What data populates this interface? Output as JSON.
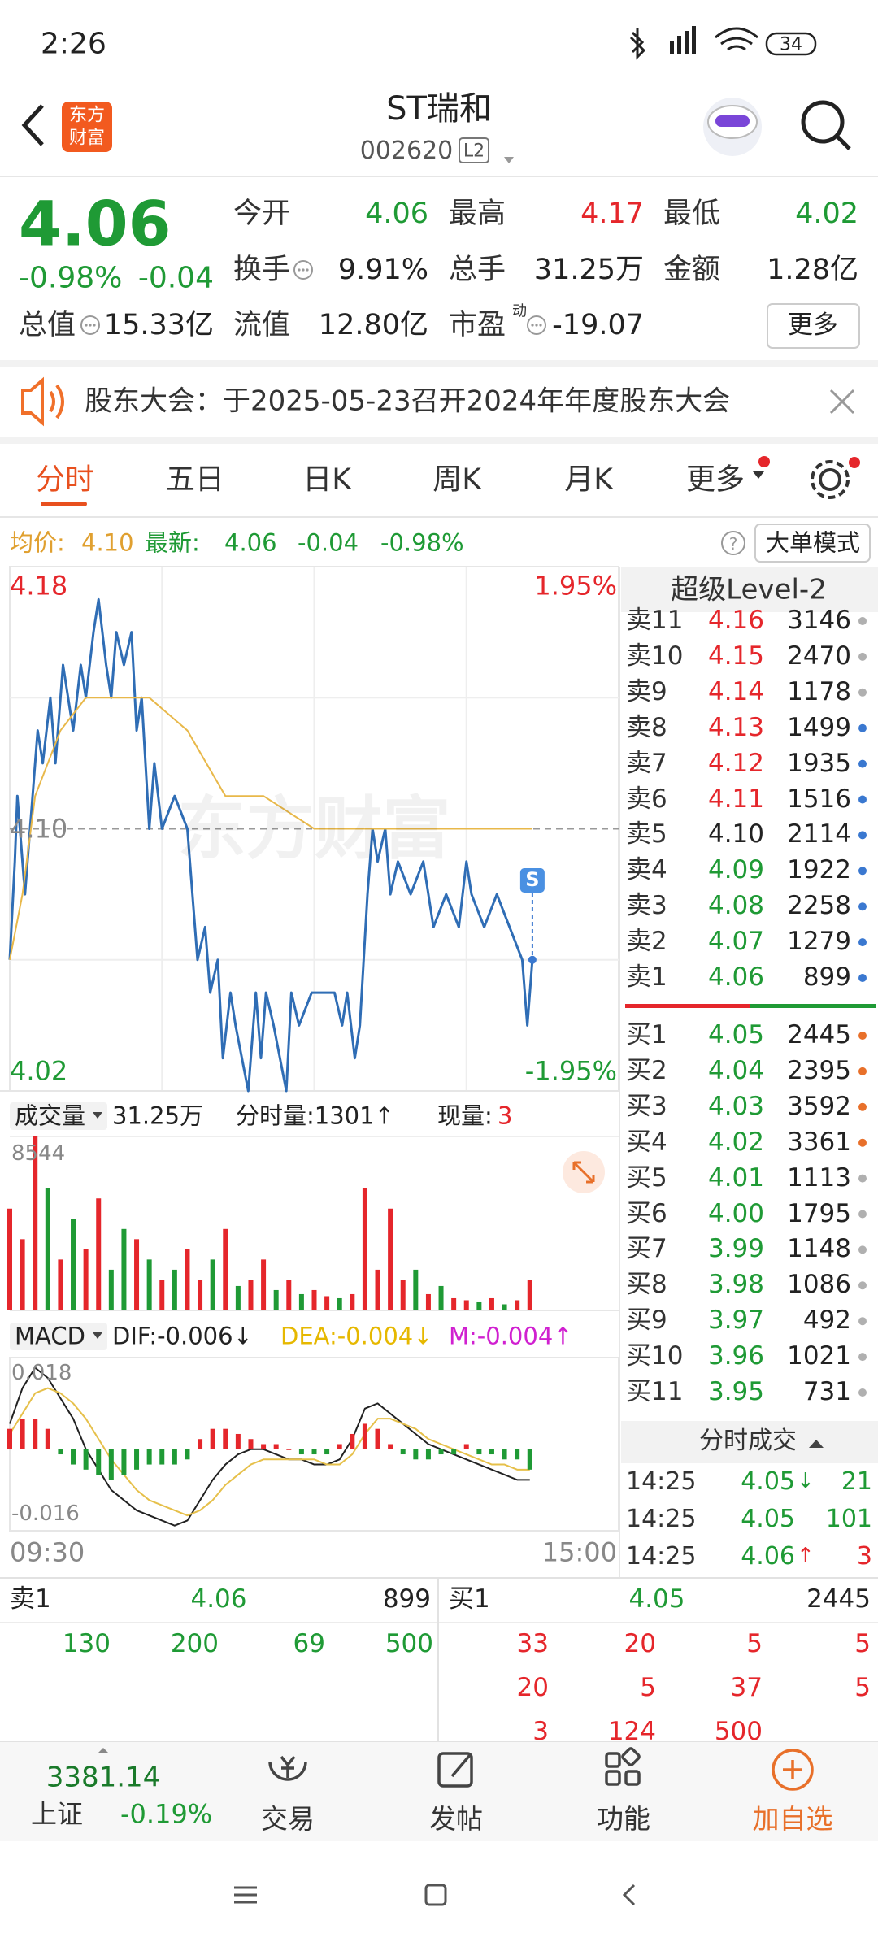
{
  "status": {
    "time": "2:26",
    "battery": "34"
  },
  "header": {
    "logo": [
      "东方",
      "财富"
    ],
    "title": "ST瑞和",
    "code": "002620",
    "level": "L2"
  },
  "quote": {
    "price": "4.06",
    "change_pct": "-0.98%",
    "change": "-0.04",
    "rows": [
      [
        {
          "label": "今开",
          "value": "4.06",
          "color": "#1f9a35"
        },
        {
          "label": "最高",
          "value": "4.17",
          "color": "#e5262b"
        },
        {
          "label": "最低",
          "value": "4.02",
          "color": "#1f9a35"
        }
      ],
      [
        {
          "label": "换手",
          "value": "9.91%",
          "color": "#222222",
          "info": true
        },
        {
          "label": "总手",
          "value": "31.25万",
          "color": "#222222"
        },
        {
          "label": "金额",
          "value": "1.28亿",
          "color": "#222222"
        }
      ]
    ],
    "stats": [
      {
        "label": "总值",
        "value": "15.33亿",
        "info": true
      },
      {
        "label": "流值",
        "value": "12.80亿"
      },
      {
        "label": "市盈",
        "sup": "动",
        "value": "-19.07",
        "info": true
      }
    ],
    "more": "更多"
  },
  "notice": {
    "text": "股东大会：于2025-05-23召开2024年年度股东大会"
  },
  "tabs": {
    "items": [
      "分时",
      "五日",
      "日K",
      "周K",
      "月K",
      "更多"
    ],
    "active": 0
  },
  "info": {
    "avg_label": "均价:",
    "avg": "4.10",
    "last_label": "最新:",
    "last": "4.06",
    "change": "-0.04",
    "change_pct": "-0.98%",
    "button": "大单模式"
  },
  "chart_data": [
    {
      "type": "line",
      "watermark": "东方财富",
      "marker": "S",
      "xlim": [
        0,
        240
      ],
      "xticks": [
        {
          "value": 0,
          "label": "09:30"
        },
        {
          "value": 240,
          "label": "15:00"
        }
      ],
      "xgrid": [
        60,
        120,
        180
      ],
      "ylim": [
        4.02,
        4.18
      ],
      "yticks": [
        4.18,
        {
          "value": 4.1,
          "label": "4.10"
        },
        4.02
      ],
      "ygrid": [
        4.14,
        4.06
      ],
      "y2lim": [
        -1.95,
        1.95
      ],
      "y2ticks": [
        {
          "value": 1.95,
          "label": "1.95%"
        },
        {
          "value": -1.95,
          "label": "-1.95%"
        }
      ],
      "series": [
        {
          "color": "#2f6db5",
          "x": [
            0,
            2,
            3,
            6,
            8,
            11,
            13,
            16,
            18,
            21,
            23,
            25,
            28,
            30,
            33,
            35,
            38,
            40,
            42,
            45,
            48,
            50,
            52,
            55,
            57,
            60,
            65,
            70,
            72,
            74,
            77,
            79,
            82,
            84,
            87,
            89,
            94,
            97,
            99,
            101,
            104,
            109,
            111,
            114,
            119,
            123,
            128,
            131,
            133,
            136,
            138,
            141,
            143,
            145,
            148,
            150,
            153,
            158,
            163,
            167,
            172,
            177,
            180,
            182,
            187,
            192,
            197,
            202,
            204,
            206
          ],
          "values": [
            4.06,
            4.09,
            4.11,
            4.08,
            4.1,
            4.13,
            4.12,
            4.14,
            4.12,
            4.15,
            4.14,
            4.13,
            4.15,
            4.14,
            4.16,
            4.17,
            4.15,
            4.14,
            4.16,
            4.15,
            4.16,
            4.13,
            4.14,
            4.1,
            4.12,
            4.1,
            4.11,
            4.1,
            4.08,
            4.06,
            4.07,
            4.05,
            4.06,
            4.03,
            4.05,
            4.04,
            4.02,
            4.05,
            4.03,
            4.05,
            4.04,
            4.02,
            4.05,
            4.04,
            4.05,
            4.05,
            4.05,
            4.04,
            4.05,
            4.03,
            4.04,
            4.08,
            4.1,
            4.09,
            4.1,
            4.08,
            4.09,
            4.08,
            4.09,
            4.07,
            4.08,
            4.07,
            4.09,
            4.08,
            4.07,
            4.08,
            4.07,
            4.06,
            4.04,
            4.06
          ]
        },
        {
          "color": "#e8b84a",
          "x": [
            0,
            5,
            10,
            20,
            30,
            45,
            55,
            70,
            85,
            100,
            120,
            160,
            206
          ],
          "values": [
            4.06,
            4.08,
            4.11,
            4.13,
            4.14,
            4.14,
            4.14,
            4.13,
            4.11,
            4.11,
            4.1,
            4.1,
            4.1
          ]
        }
      ]
    },
    {
      "type": "bar",
      "label": "成交量",
      "total": "31.25万",
      "minute_vol": "分时量:1301↑",
      "current_label": "现量:",
      "current": "3",
      "xlim": [
        0,
        240
      ],
      "ylim": [
        0,
        8544
      ],
      "yticks": [
        8544
      ],
      "x": [
        0,
        5,
        10,
        15,
        20,
        25,
        30,
        35,
        40,
        45,
        50,
        55,
        60,
        65,
        70,
        75,
        80,
        85,
        90,
        95,
        100,
        105,
        110,
        115,
        120,
        125,
        130,
        135,
        140,
        145,
        150,
        155,
        160,
        165,
        170,
        175,
        180,
        185,
        190,
        195,
        200,
        205
      ],
      "values": [
        5000,
        3500,
        8544,
        6000,
        2500,
        4500,
        3000,
        5500,
        2000,
        4000,
        3500,
        2500,
        1500,
        2000,
        3000,
        1500,
        2500,
        4000,
        1200,
        1500,
        2500,
        1000,
        1500,
        800,
        1000,
        700,
        600,
        800,
        6000,
        2000,
        5000,
        1500,
        2000,
        800,
        1200,
        600,
        500,
        400,
        600,
        300,
        500,
        1500
      ],
      "colors": [
        "#e5262b",
        "#e5262b",
        "#e5262b",
        "#1f9a35",
        "#e5262b",
        "#1f9a35",
        "#e5262b",
        "#e5262b",
        "#1f9a35",
        "#1f9a35",
        "#e5262b",
        "#1f9a35",
        "#e5262b",
        "#1f9a35",
        "#e5262b",
        "#e5262b",
        "#1f9a35",
        "#e5262b",
        "#1f9a35",
        "#e5262b",
        "#e5262b",
        "#1f9a35",
        "#e5262b",
        "#1f9a35",
        "#e5262b",
        "#e5262b",
        "#1f9a35",
        "#e5262b",
        "#e5262b",
        "#e5262b",
        "#e5262b",
        "#e5262b",
        "#1f9a35",
        "#e5262b",
        "#1f9a35",
        "#e5262b",
        "#e5262b",
        "#1f9a35",
        "#e5262b",
        "#1f9a35",
        "#e5262b",
        "#e5262b"
      ]
    },
    {
      "type": "macd",
      "label": "MACD",
      "dif_label": "DIF:-0.006↓",
      "dea_label": "DEA:-0.004↓",
      "m_label": "M:-0.004↑",
      "xlim": [
        0,
        240
      ],
      "ylim": [
        -0.016,
        0.018
      ],
      "yticks": [
        0.018,
        -0.016
      ],
      "x": [
        0,
        5,
        10,
        15,
        20,
        25,
        30,
        35,
        40,
        45,
        50,
        55,
        60,
        65,
        70,
        75,
        80,
        85,
        90,
        95,
        100,
        105,
        110,
        115,
        120,
        125,
        130,
        135,
        140,
        145,
        150,
        155,
        160,
        165,
        170,
        175,
        180,
        185,
        190,
        195,
        200,
        205
      ],
      "series": [
        {
          "color": "#222222",
          "values": [
            0.005,
            0.012,
            0.016,
            0.014,
            0.01,
            0.006,
            0.0,
            -0.004,
            -0.008,
            -0.01,
            -0.012,
            -0.013,
            -0.014,
            -0.015,
            -0.014,
            -0.01,
            -0.006,
            -0.003,
            -0.001,
            0.0,
            0.0,
            -0.001,
            -0.002,
            -0.002,
            -0.003,
            -0.003,
            -0.002,
            0.002,
            0.008,
            0.009,
            0.007,
            0.005,
            0.003,
            0.001,
            0.0,
            -0.001,
            -0.002,
            -0.003,
            -0.004,
            -0.005,
            -0.006,
            -0.006
          ]
        },
        {
          "color": "#e6c04a",
          "values": [
            0.003,
            0.007,
            0.011,
            0.012,
            0.011,
            0.009,
            0.006,
            0.002,
            -0.002,
            -0.005,
            -0.008,
            -0.01,
            -0.011,
            -0.012,
            -0.013,
            -0.012,
            -0.01,
            -0.007,
            -0.005,
            -0.003,
            -0.002,
            -0.002,
            -0.002,
            -0.002,
            -0.002,
            -0.003,
            -0.003,
            -0.001,
            0.003,
            0.006,
            0.006,
            0.005,
            0.004,
            0.002,
            0.001,
            0.0,
            -0.001,
            -0.002,
            -0.003,
            -0.003,
            -0.004,
            -0.004
          ]
        },
        {
          "type": "bar",
          "up_color": "#e5262b",
          "down_color": "#1f9a35",
          "values": [
            0.004,
            0.006,
            0.006,
            0.004,
            -0.001,
            -0.003,
            -0.004,
            -0.005,
            -0.006,
            -0.005,
            -0.004,
            -0.003,
            -0.003,
            -0.003,
            -0.002,
            0.002,
            0.004,
            0.004,
            0.003,
            0.002,
            0.001,
            0.001,
            0.0,
            -0.001,
            -0.001,
            -0.001,
            0.001,
            0.003,
            0.005,
            0.004,
            0.001,
            -0.001,
            -0.002,
            -0.002,
            -0.001,
            -0.001,
            0.001,
            -0.001,
            -0.001,
            -0.002,
            -0.002,
            -0.004
          ]
        }
      ]
    }
  ],
  "order_book": {
    "title": "超级Level-2",
    "sell": [
      {
        "label": "卖11",
        "price": "4.16",
        "volume": 3146,
        "color": "#e5262b",
        "dot": "#b0b0b0"
      },
      {
        "label": "卖10",
        "price": "4.15",
        "volume": 2470,
        "color": "#e5262b",
        "dot": "#b0b0b0"
      },
      {
        "label": "卖9",
        "price": "4.14",
        "volume": 1178,
        "color": "#e5262b",
        "dot": "#b0b0b0"
      },
      {
        "label": "卖8",
        "price": "4.13",
        "volume": 1499,
        "color": "#e5262b",
        "dot": "#3a78d0"
      },
      {
        "label": "卖7",
        "price": "4.12",
        "volume": 1935,
        "color": "#e5262b",
        "dot": "#3a78d0"
      },
      {
        "label": "卖6",
        "price": "4.11",
        "volume": 1516,
        "color": "#e5262b",
        "dot": "#3a78d0"
      },
      {
        "label": "卖5",
        "price": "4.10",
        "volume": 2114,
        "color": "#222222",
        "dot": "#3a78d0"
      },
      {
        "label": "卖4",
        "price": "4.09",
        "volume": 1922,
        "color": "#1f9a35",
        "dot": "#3a78d0"
      },
      {
        "label": "卖3",
        "price": "4.08",
        "volume": 2258,
        "color": "#1f9a35",
        "dot": "#3a78d0"
      },
      {
        "label": "卖2",
        "price": "4.07",
        "volume": 1279,
        "color": "#1f9a35",
        "dot": "#3a78d0"
      },
      {
        "label": "卖1",
        "price": "4.06",
        "volume": 899,
        "color": "#1f9a35",
        "dot": "#3a78d0"
      }
    ],
    "buy": [
      {
        "label": "买1",
        "price": "4.05",
        "volume": 2445,
        "color": "#1f9a35",
        "dot": "#e8702a"
      },
      {
        "label": "买2",
        "price": "4.04",
        "volume": 2395,
        "color": "#1f9a35",
        "dot": "#e8702a"
      },
      {
        "label": "买3",
        "price": "4.03",
        "volume": 3592,
        "color": "#1f9a35",
        "dot": "#e8702a"
      },
      {
        "label": "买4",
        "price": "4.02",
        "volume": 3361,
        "color": "#1f9a35",
        "dot": "#e8702a"
      },
      {
        "label": "买5",
        "price": "4.01",
        "volume": 1113,
        "color": "#1f9a35",
        "dot": "#b0b0b0"
      },
      {
        "label": "买6",
        "price": "4.00",
        "volume": 1795,
        "color": "#1f9a35",
        "dot": "#b0b0b0"
      },
      {
        "label": "买7",
        "price": "3.99",
        "volume": 1148,
        "color": "#1f9a35",
        "dot": "#b0b0b0"
      },
      {
        "label": "买8",
        "price": "3.98",
        "volume": 1086,
        "color": "#1f9a35",
        "dot": "#b0b0b0"
      },
      {
        "label": "买9",
        "price": "3.97",
        "volume": 492,
        "color": "#1f9a35",
        "dot": "#b0b0b0"
      },
      {
        "label": "买10",
        "price": "3.96",
        "volume": 1021,
        "color": "#1f9a35",
        "dot": "#b0b0b0"
      },
      {
        "label": "买11",
        "price": "3.95",
        "volume": 731,
        "color": "#1f9a35",
        "dot": "#b0b0b0"
      }
    ]
  },
  "trades": {
    "title": "分时成交",
    "rows": [
      {
        "time": "14:25",
        "price": "4.05",
        "arrow": "↓",
        "arrow_color": "#1f9a35",
        "volume": 21,
        "color": "#1f9a35"
      },
      {
        "time": "14:25",
        "price": "4.05",
        "volume": 101,
        "color": "#1f9a35"
      },
      {
        "time": "14:25",
        "price": "4.06",
        "arrow": "↑",
        "arrow_color": "#e5262b",
        "volume": 3,
        "color": "#e5262b"
      }
    ]
  },
  "level": {
    "sell_label": "卖1",
    "sell_price": "4.06",
    "sell_volume": 899,
    "buy_label": "买1",
    "buy_price": "4.05",
    "buy_volume": 2445,
    "sell_rows": [
      [
        130,
        200,
        69,
        500
      ]
    ],
    "buy_rows": [
      [
        33,
        20,
        5,
        5
      ],
      [
        20,
        5,
        37,
        5
      ],
      [
        3,
        124,
        500
      ]
    ]
  },
  "nav": {
    "index_value": "3381.14",
    "index_name": "上证",
    "index_change": "-0.19%",
    "items": [
      "交易",
      "发帖",
      "功能",
      "加自选"
    ]
  }
}
